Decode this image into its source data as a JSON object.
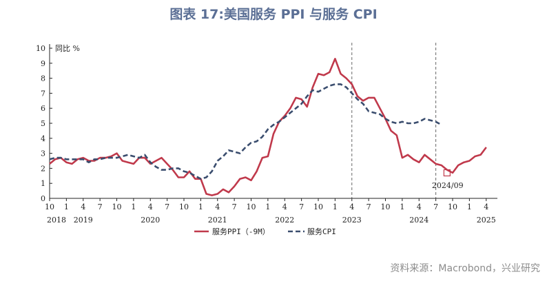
{
  "title": "图表 17:美国服务 PPI 与服务 CPI",
  "source": "资料来源：Macrobond，兴业研究",
  "chart_data": {
    "type": "line",
    "title": "图表 17:美国服务 PPI 与服务 CPI",
    "ylabel": "同比 %",
    "ylim": [
      0,
      10
    ],
    "yticks": [
      "0",
      "1",
      "2",
      "3",
      "4",
      "5",
      "6",
      "7",
      "8",
      "9",
      "10"
    ],
    "x_start": "2018-10",
    "x_end": "2025-06",
    "xtick_labels": [
      "10",
      "1",
      "4",
      "7",
      "10",
      "1",
      "4",
      "7",
      "10",
      "1",
      "4",
      "7",
      "10",
      "1",
      "4",
      "7",
      "10",
      "1",
      "4",
      "7",
      "10",
      "1",
      "4",
      "7",
      "10",
      "1",
      "4"
    ],
    "year_labels": [
      "2018",
      "2019",
      "2020",
      "2021",
      "2022",
      "2023",
      "2024",
      "2025"
    ],
    "vlines": [
      "2023-04",
      "2024-07"
    ],
    "annotation": {
      "text": "2024/09",
      "x": "2024-09",
      "y": 1.7
    },
    "series": [
      {
        "name": "服务PPI（-9M）",
        "color": "#c0394b",
        "style": "solid",
        "start": "2018-10",
        "values": [
          2.3,
          2.6,
          2.7,
          2.4,
          2.3,
          2.6,
          2.7,
          2.5,
          2.5,
          2.7,
          2.7,
          2.8,
          3.0,
          2.5,
          2.4,
          2.3,
          2.7,
          2.7,
          2.3,
          2.5,
          2.7,
          2.3,
          1.9,
          1.4,
          1.4,
          1.8,
          1.3,
          1.3,
          0.3,
          0.2,
          0.3,
          0.6,
          0.4,
          0.8,
          1.3,
          1.4,
          1.2,
          1.8,
          2.7,
          2.8,
          4.3,
          5.1,
          5.5,
          6.0,
          6.7,
          6.6,
          6.1,
          7.4,
          8.3,
          8.2,
          8.4,
          9.3,
          8.3,
          8.0,
          7.6,
          6.8,
          6.5,
          6.7,
          6.7,
          6.0,
          5.3,
          4.5,
          4.2,
          2.7,
          2.9,
          2.6,
          2.4,
          2.9,
          2.6,
          2.3,
          2.2,
          1.9,
          1.7,
          2.2,
          2.4,
          2.5,
          2.8,
          2.9,
          3.4
        ]
      },
      {
        "name": "服务CPI",
        "color": "#3a4d6e",
        "style": "dashed",
        "start": "2018-10",
        "values": [
          2.6,
          2.7,
          2.7,
          2.6,
          2.6,
          2.6,
          2.6,
          2.4,
          2.6,
          2.6,
          2.7,
          2.7,
          2.7,
          2.8,
          2.9,
          2.8,
          2.7,
          2.9,
          2.4,
          2.1,
          1.9,
          1.9,
          2.0,
          2.0,
          1.8,
          1.7,
          1.5,
          1.3,
          1.4,
          1.8,
          2.5,
          2.8,
          3.2,
          3.1,
          3.0,
          3.4,
          3.7,
          3.8,
          4.1,
          4.6,
          4.9,
          5.1,
          5.4,
          5.7,
          6.0,
          6.3,
          6.8,
          7.2,
          7.1,
          7.3,
          7.5,
          7.6,
          7.6,
          7.4,
          7.0,
          6.6,
          6.3,
          5.8,
          5.7,
          5.6,
          5.3,
          5.1,
          5.0,
          5.1,
          5.0,
          5.0,
          5.1,
          5.3,
          5.2,
          5.1,
          4.9
        ]
      }
    ]
  }
}
